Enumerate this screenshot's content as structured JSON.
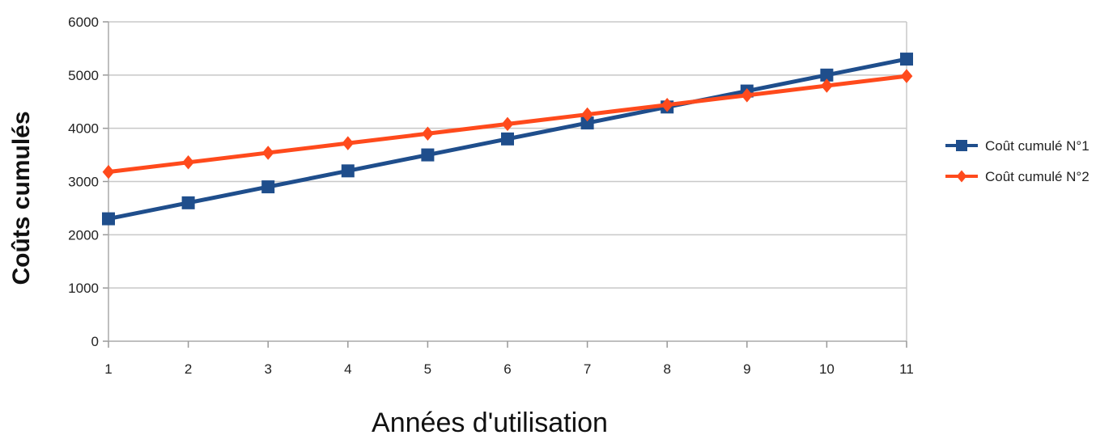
{
  "chart_data": {
    "type": "line",
    "title": "",
    "xlabel": "Années d'utilisation",
    "ylabel": "Coûts cumulés",
    "categories": [
      1,
      2,
      3,
      4,
      5,
      6,
      7,
      8,
      9,
      10,
      11
    ],
    "ylim": [
      0,
      6000
    ],
    "yticks": [
      0,
      1000,
      2000,
      3000,
      4000,
      5000,
      6000
    ],
    "grid": "horizontal",
    "legend_position": "right",
    "series": [
      {
        "name": "Coût cumulé N°1",
        "color": "#1f4e8c",
        "marker": "square",
        "values": [
          2300,
          2600,
          2900,
          3200,
          3500,
          3800,
          4100,
          4400,
          4700,
          5000,
          5300
        ]
      },
      {
        "name": "Coût cumulé N°2",
        "color": "#ff4a1c",
        "marker": "diamond",
        "values": [
          3180,
          3360,
          3540,
          3720,
          3900,
          4080,
          4260,
          4440,
          4620,
          4800,
          4980
        ]
      }
    ]
  }
}
